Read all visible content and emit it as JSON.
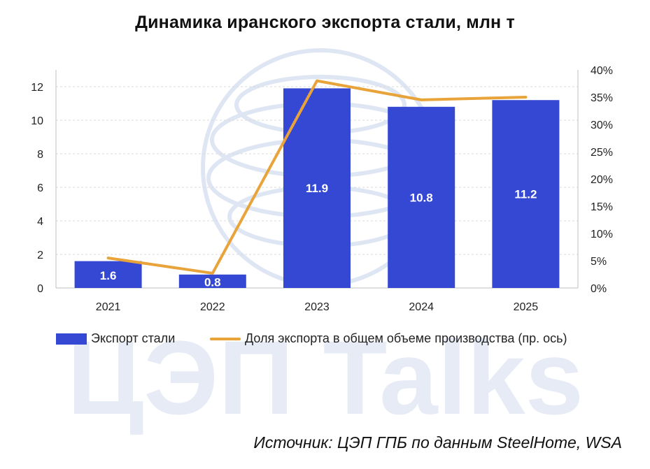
{
  "title": "Динамика иранского экспорта стали, млн т",
  "source": "Источник: ЦЭП ГПБ по данным SteelHome, WSA",
  "watermark": "ЦЭП Talks",
  "colors": {
    "bar": "#3548d4",
    "line": "#e8a33a",
    "grid": "#d9d9d9",
    "axis": "#bfbfbf",
    "watermark": "#dfe6f3"
  },
  "chart_data": {
    "type": "bar",
    "categories": [
      "2021",
      "2022",
      "2023",
      "2024",
      "2025"
    ],
    "series": [
      {
        "name": "Экспорт стали",
        "type": "bar",
        "axis": "left",
        "values": [
          1.6,
          0.8,
          11.9,
          10.8,
          11.2
        ],
        "labels": [
          "1.6",
          "0.8",
          "11.9",
          "10.8",
          "11.2"
        ]
      },
      {
        "name": "Доля экспорта в общем объеме производства (пр. ось)",
        "type": "line",
        "axis": "right",
        "values": [
          5.5,
          2.7,
          38.0,
          34.5,
          35.0
        ]
      }
    ],
    "ylim": [
      0,
      13
    ],
    "yticks": [
      "0",
      "2",
      "4",
      "6",
      "8",
      "10",
      "12"
    ],
    "y2lim": [
      0,
      40
    ],
    "y2ticks": [
      "0%",
      "5%",
      "10%",
      "15%",
      "20%",
      "25%",
      "30%",
      "35%",
      "40%"
    ],
    "grid": true,
    "legend": "bottom"
  }
}
